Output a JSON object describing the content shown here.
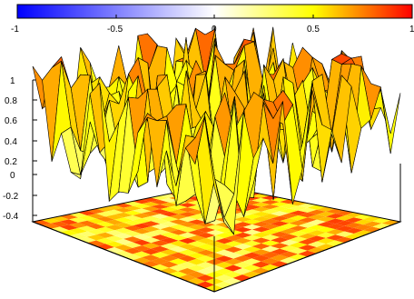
{
  "chart_data": {
    "type": "surface",
    "title": "",
    "xlabel": "",
    "ylabel": "",
    "zlabel": "",
    "zlim": [
      -0.5,
      1
    ],
    "z_ticks": [
      "1",
      "0.8",
      "0.6",
      "0.4",
      "0.2",
      "0",
      "-0.2",
      "-0.4"
    ],
    "colorbar": {
      "range": [
        -1,
        1
      ],
      "ticks": [
        "-1",
        "-0.5",
        "0",
        "0.5",
        "1"
      ],
      "colors": {
        "low": "#0000ff",
        "mid": "#ffffff",
        "high": "#ff0000",
        "mid_high": "#ffff00"
      },
      "placement": "top"
    },
    "grid": false,
    "legend": "none",
    "grid_size": [
      20,
      20
    ],
    "z_distribution": "mostly 0 to 1, noisy spikes, values concentrated near 0.6-0.9",
    "projection": "colored heatmap on base plane"
  }
}
